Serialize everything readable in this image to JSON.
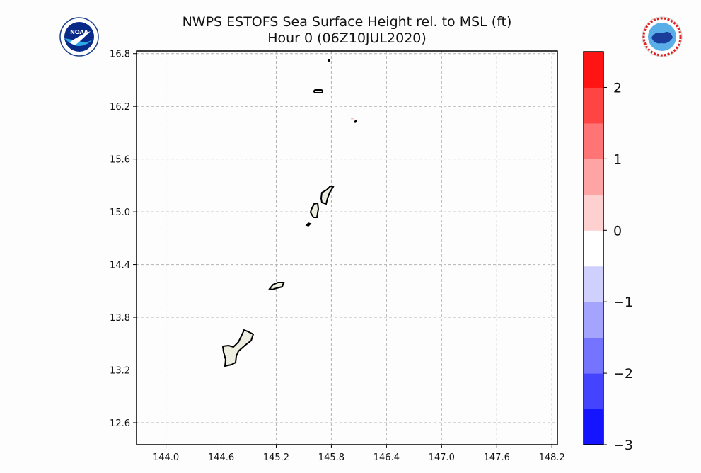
{
  "title_line1": "NWPS ESTOFS Sea Surface Height rel. to MSL (ft)",
  "title_line2": "Hour 0 (06Z10JUL2020)",
  "logos": {
    "left": "NOAA",
    "right": "National Weather Service"
  },
  "chart_data": {
    "type": "map",
    "x_ticks": [
      "144.0",
      "144.6",
      "145.2",
      "145.8",
      "146.4",
      "147.0",
      "147.6",
      "148.2"
    ],
    "y_ticks": [
      "16.8",
      "16.2",
      "15.6",
      "15.0",
      "14.4",
      "13.8",
      "13.2",
      "12.6"
    ],
    "xlim": [
      143.68,
      148.26
    ],
    "ylim": [
      12.35,
      16.83
    ],
    "grid": true,
    "colorbar": {
      "ticks": [
        "2",
        "1",
        "0",
        "−1",
        "−2",
        "−3"
      ],
      "levels": [
        -3,
        -2.5,
        -2,
        -1.5,
        -1,
        -0.5,
        0,
        0.5,
        1,
        1.5,
        2,
        2.5
      ],
      "colors": [
        "#1414ff",
        "#4444ff",
        "#7474ff",
        "#a4a4ff",
        "#d0d0ff",
        "#ffffff",
        "#ffd0d0",
        "#ffa4a4",
        "#ff7474",
        "#ff4444",
        "#ff1414"
      ]
    },
    "land_color": "#eeeee0",
    "islands": [
      "Guam",
      "Rota",
      "Tinian",
      "Saipan",
      "Aguijan",
      "Anatahan",
      "Farallon de Medinilla"
    ]
  }
}
